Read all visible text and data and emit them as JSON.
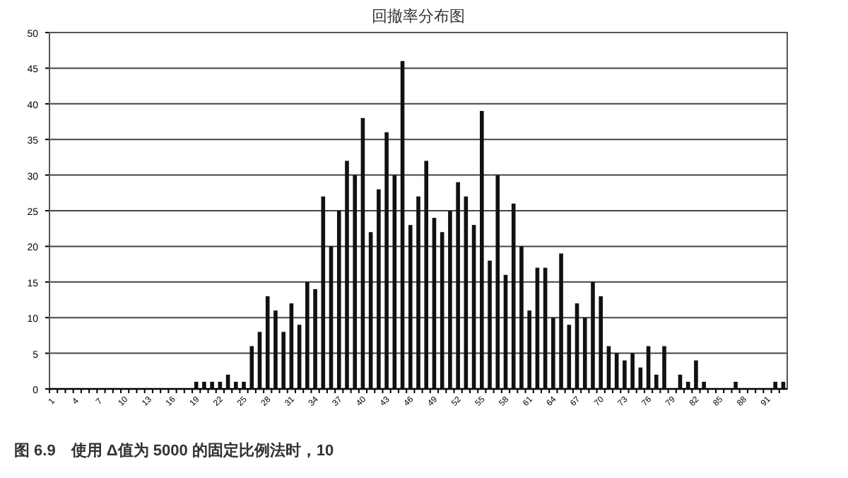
{
  "chart_data": {
    "type": "bar",
    "title": "回撤率分布图",
    "categories": [
      "1",
      null,
      null,
      "4",
      null,
      null,
      "7",
      null,
      null,
      "10",
      null,
      null,
      "13",
      null,
      null,
      "16",
      null,
      null,
      "19",
      null,
      null,
      "22",
      null,
      null,
      "25",
      null,
      null,
      "28",
      null,
      null,
      "31",
      null,
      null,
      "34",
      null,
      null,
      "37",
      null,
      null,
      "40",
      null,
      null,
      "43",
      null,
      null,
      "46",
      null,
      null,
      "49",
      null,
      null,
      "52",
      null,
      null,
      "55",
      null,
      null,
      "58",
      null,
      null,
      "61",
      null,
      null,
      "64",
      null,
      null,
      "67",
      null,
      null,
      "70",
      null,
      null,
      "73",
      null,
      null,
      "76",
      null,
      null,
      "79",
      null,
      null,
      "82",
      null,
      null,
      "85",
      null,
      null,
      "88",
      null,
      null,
      "91",
      null,
      null
    ],
    "values": [
      0,
      0,
      0,
      0,
      0,
      0,
      0,
      0,
      0,
      0,
      0,
      0,
      0,
      0,
      0,
      0,
      0,
      0,
      1,
      1,
      1,
      1,
      2,
      1,
      1,
      6,
      8,
      13,
      11,
      8,
      12,
      9,
      15,
      14,
      27,
      20,
      25,
      32,
      30,
      38,
      22,
      28,
      36,
      30,
      46,
      23,
      27,
      32,
      24,
      22,
      25,
      29,
      27,
      23,
      39,
      18,
      30,
      16,
      26,
      20,
      11,
      17,
      17,
      10,
      19,
      9,
      12,
      10,
      15,
      13,
      6,
      5,
      4,
      5,
      3,
      6,
      2,
      6,
      0,
      2,
      1,
      4,
      1,
      0,
      0,
      0,
      1,
      0,
      0,
      0,
      0,
      1,
      1
    ],
    "color": "#111111",
    "ylim": [
      0,
      50
    ],
    "yticks": [
      0,
      5,
      10,
      15,
      20,
      25,
      30,
      35,
      40,
      45,
      50
    ],
    "grid": "y",
    "annotations": [
      "图 6.9　使用 Δ值为 5000 的固定比例法时，10"
    ]
  }
}
